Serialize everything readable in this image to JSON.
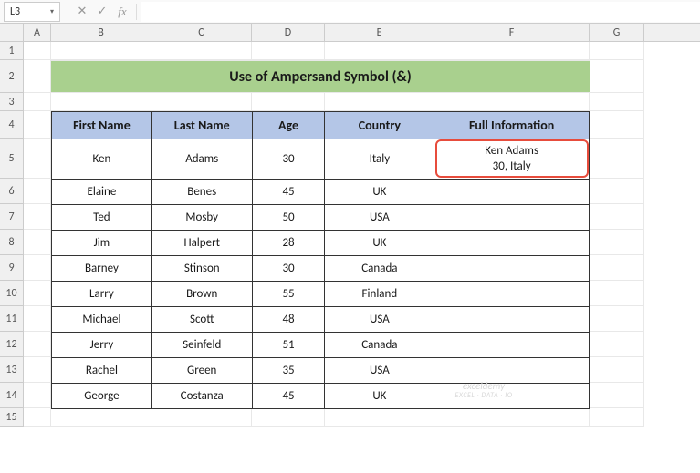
{
  "nameBox": {
    "value": "L3",
    "dropdown": "▾"
  },
  "formulaBar": {
    "cancel": "✕",
    "confirm": "✓",
    "fx": "fx",
    "value": ""
  },
  "colWidths": {
    "A": 30,
    "B": 110,
    "C": 110,
    "D": 80,
    "E": 120,
    "F": 170,
    "G": 60
  },
  "rowHeights": {
    "1": 20,
    "2": 36,
    "3": 20,
    "4": 30,
    "5": 44,
    "6": 28,
    "7": 28,
    "8": 28,
    "9": 28,
    "10": 28,
    "11": 28,
    "12": 28,
    "13": 28,
    "14": 28,
    "15": 20
  },
  "columns": [
    "A",
    "B",
    "C",
    "D",
    "E",
    "F",
    "G"
  ],
  "rows": [
    "1",
    "2",
    "3",
    "4",
    "5",
    "6",
    "7",
    "8",
    "9",
    "10",
    "11",
    "12",
    "13",
    "14",
    "15"
  ],
  "titleText": "Use of Ampersand Symbol (&)",
  "headers": {
    "firstName": "First Name",
    "lastName": "Last Name",
    "age": "Age",
    "country": "Country",
    "fullInfo": "Full Information"
  },
  "data": [
    {
      "first": "Ken",
      "last": "Adams",
      "age": "30",
      "country": "Italy",
      "full1": "Ken  Adams",
      "full2": "30, Italy"
    },
    {
      "first": "Elaine",
      "last": "Benes",
      "age": "45",
      "country": "UK",
      "full1": "",
      "full2": ""
    },
    {
      "first": "Ted",
      "last": "Mosby",
      "age": "50",
      "country": "USA",
      "full1": "",
      "full2": ""
    },
    {
      "first": "Jim",
      "last": "Halpert",
      "age": "28",
      "country": "UK",
      "full1": "",
      "full2": ""
    },
    {
      "first": "Barney",
      "last": "Stinson",
      "age": "30",
      "country": "Canada",
      "full1": "",
      "full2": ""
    },
    {
      "first": "Larry",
      "last": "Brown",
      "age": "55",
      "country": "Finland",
      "full1": "",
      "full2": ""
    },
    {
      "first": "Michael",
      "last": "Scott",
      "age": "48",
      "country": "USA",
      "full1": "",
      "full2": ""
    },
    {
      "first": "Jerry",
      "last": "Seinfeld",
      "age": "51",
      "country": "Canada",
      "full1": "",
      "full2": ""
    },
    {
      "first": "Rachel",
      "last": "Green",
      "age": "35",
      "country": "USA",
      "full1": "",
      "full2": ""
    },
    {
      "first": "George",
      "last": "Costanza",
      "age": "45",
      "country": "UK",
      "full1": "",
      "full2": ""
    }
  ],
  "colors": {
    "titleBg": "#a9d08e",
    "headerBg": "#b4c6e7",
    "border": "#333333",
    "highlight": "#e74c3c",
    "gridline": "#e8e8e8"
  },
  "watermark": {
    "main": "exceldemy",
    "sub": "EXCEL · DATA · IO"
  }
}
